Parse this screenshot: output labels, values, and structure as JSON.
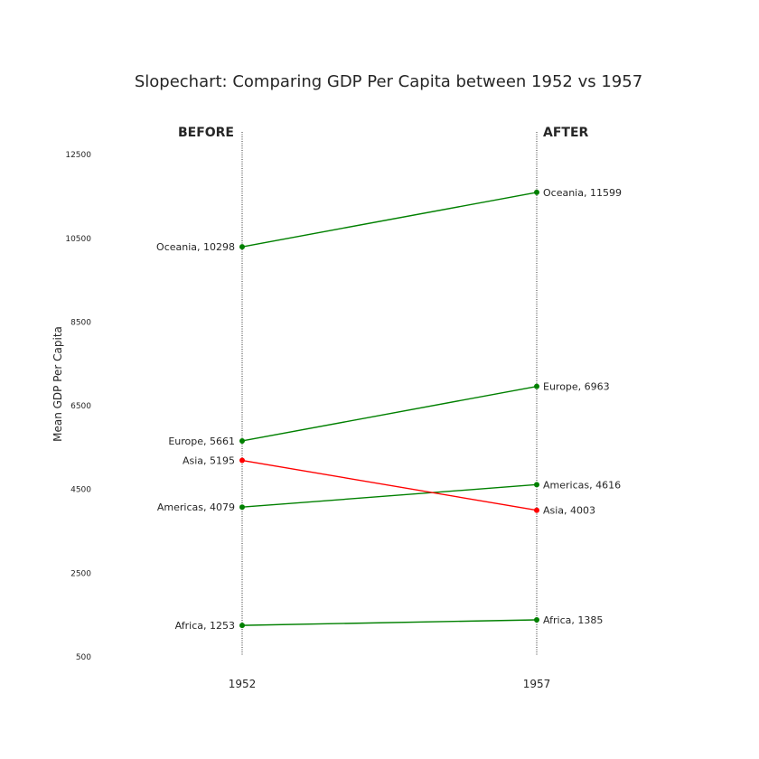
{
  "chart_data": {
    "type": "line",
    "title": "Slopechart: Comparing GDP Per Capita between 1952 vs 1957",
    "ylabel": "Mean GDP Per Capita",
    "xlabel": "",
    "x": [
      "1952",
      "1957"
    ],
    "column_headers": [
      "BEFORE",
      "AFTER"
    ],
    "ylim": [
      500,
      13000
    ],
    "yticks": [
      500,
      2500,
      4500,
      6500,
      8500,
      10500,
      12500
    ],
    "grid": false,
    "series": [
      {
        "name": "Africa",
        "values": [
          1253,
          1385
        ],
        "color": "#008000"
      },
      {
        "name": "Americas",
        "values": [
          4079,
          4616
        ],
        "color": "#008000"
      },
      {
        "name": "Asia",
        "values": [
          5195,
          4003
        ],
        "color": "#ff0000"
      },
      {
        "name": "Europe",
        "values": [
          5661,
          6963
        ],
        "color": "#008000"
      },
      {
        "name": "Oceania",
        "values": [
          10298,
          11599
        ],
        "color": "#008000"
      }
    ]
  }
}
